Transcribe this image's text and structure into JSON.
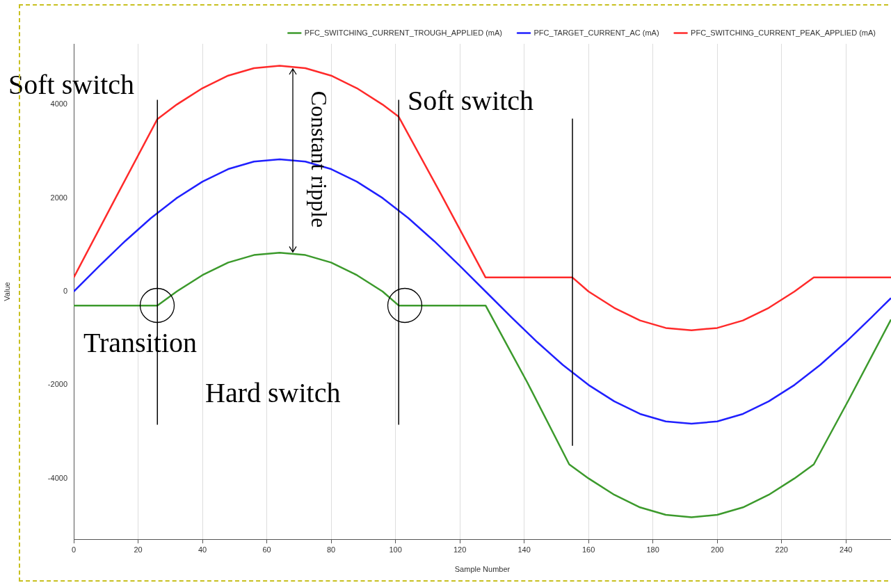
{
  "chart_data": {
    "type": "line",
    "xlabel": "Sample Number",
    "ylabel": "Value",
    "xlim": [
      0,
      254
    ],
    "xticks": [
      0,
      20,
      40,
      60,
      80,
      100,
      120,
      140,
      160,
      180,
      200,
      220,
      240
    ],
    "ylim": [
      -5300,
      5300
    ],
    "yticks": [
      -4000,
      -2000,
      0,
      2000,
      4000
    ],
    "grid": "x",
    "legend": "top right",
    "marker": "none",
    "line_style": "solid",
    "series": [
      {
        "name": "PFC_SWITCHING_CURRENT_TROUGH_APPLIED (mA)",
        "color": "#3c9a2c",
        "x": [
          0,
          26,
          32,
          40,
          48,
          56,
          64,
          72,
          80,
          88,
          96,
          101,
          128,
          141,
          154,
          160,
          168,
          176,
          184,
          192,
          200,
          208,
          216,
          224,
          230,
          241,
          254
        ],
        "values": [
          -300,
          -300,
          0,
          350,
          620,
          780,
          830,
          780,
          620,
          350,
          0,
          -300,
          -300,
          -1950,
          -3700,
          -4000,
          -4350,
          -4620,
          -4780,
          -4830,
          -4780,
          -4620,
          -4350,
          -4000,
          -3700,
          -2300,
          -600
        ]
      },
      {
        "name": "PFC_TARGET_CURRENT_AC (mA)",
        "color": "#2020ff",
        "x": [
          0,
          8,
          16,
          24,
          32,
          40,
          48,
          56,
          64,
          72,
          80,
          88,
          96,
          104,
          112,
          120,
          128,
          136,
          144,
          152,
          160,
          168,
          176,
          184,
          192,
          200,
          208,
          216,
          224,
          232,
          240,
          248,
          254
        ],
        "values": [
          0,
          550,
          1080,
          1570,
          2000,
          2350,
          2620,
          2780,
          2830,
          2780,
          2620,
          2350,
          2000,
          1570,
          1080,
          550,
          0,
          -550,
          -1080,
          -1570,
          -2000,
          -2350,
          -2620,
          -2780,
          -2830,
          -2780,
          -2620,
          -2350,
          -2000,
          -1570,
          -1080,
          -550,
          -140
        ]
      },
      {
        "name": "PFC_SWITCHING_CURRENT_PEAK_APPLIED (mA)",
        "color": "#ff2a2a",
        "x": [
          0,
          13,
          26,
          32,
          40,
          48,
          56,
          64,
          72,
          80,
          88,
          96,
          101,
          114,
          128,
          155,
          160,
          168,
          176,
          184,
          192,
          200,
          208,
          216,
          224,
          230,
          254
        ],
        "values": [
          300,
          2000,
          3690,
          4000,
          4350,
          4620,
          4780,
          4830,
          4780,
          4620,
          4350,
          4000,
          3740,
          2100,
          300,
          300,
          0,
          -350,
          -620,
          -780,
          -830,
          -780,
          -620,
          -350,
          0,
          300,
          300
        ]
      }
    ],
    "ref_lines": [
      {
        "axis": "x",
        "value": 26,
        "color": "#000000"
      },
      {
        "axis": "x",
        "value": 101,
        "color": "#000000"
      },
      {
        "axis": "x",
        "value": 155,
        "color": "#000000"
      }
    ],
    "annotations": [
      "Soft switch",
      "Soft switch",
      "Transition",
      "Hard switch",
      {
        "text": "Constant ripple",
        "x": 68,
        "y": 2830
      }
    ]
  }
}
